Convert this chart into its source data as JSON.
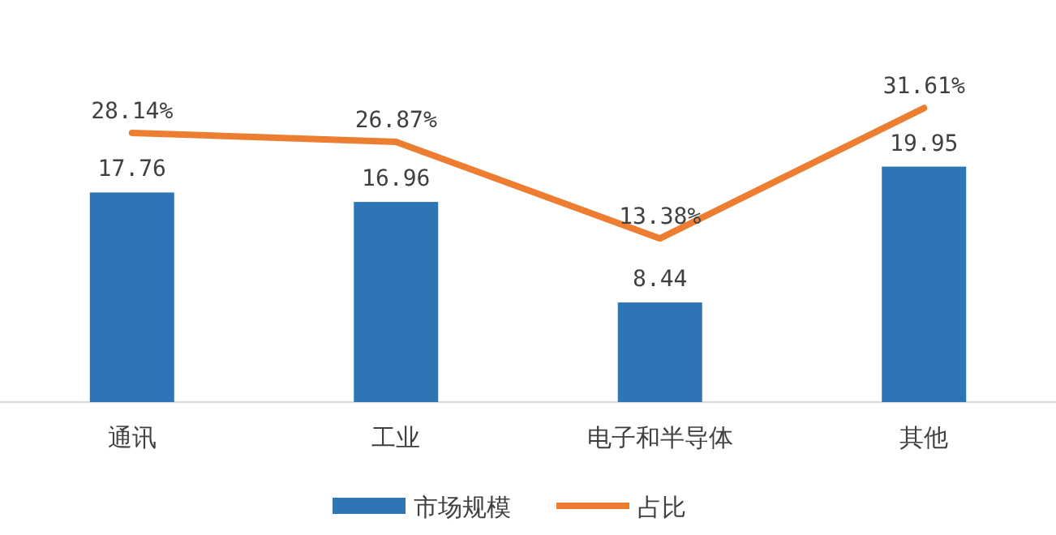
{
  "chart_data": {
    "type": "bar",
    "categories": [
      "通讯",
      "工业",
      "电子和半导体",
      "其他"
    ],
    "series": [
      {
        "name": "市场规模",
        "color": "#2e75b6",
        "values": [
          17.76,
          16.96,
          8.44,
          19.95
        ]
      },
      {
        "name": "占比",
        "type": "line",
        "axis": "y2",
        "color": "#ed7d31",
        "value_labels": [
          "28.14%",
          "26.87%",
          "13.38%",
          "31.61%"
        ],
        "values": [
          28.14,
          26.87,
          13.38,
          31.61
        ]
      }
    ],
    "data_labels": true,
    "legend": "bottom"
  }
}
